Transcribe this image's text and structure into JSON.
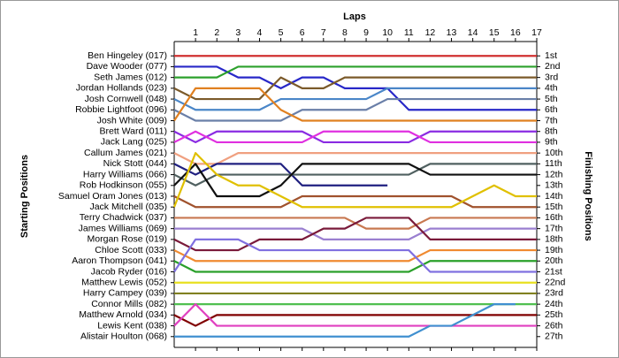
{
  "chart_data": {
    "type": "line",
    "title": "Laps",
    "ylabel": "Starting Positions",
    "y2label": "Finishing Positions",
    "x": [
      0,
      1,
      2,
      3,
      4,
      5,
      6,
      7,
      8,
      9,
      10,
      11,
      12,
      13,
      14,
      15,
      16,
      17
    ],
    "xlim": [
      0,
      17
    ],
    "xticks": [
      1,
      2,
      3,
      4,
      5,
      6,
      7,
      8,
      9,
      10,
      11,
      12,
      13,
      14,
      15,
      16,
      17
    ],
    "ylim": [
      28,
      0
    ],
    "yticks": [
      {
        "value": 1,
        "label": "1st"
      },
      {
        "value": 2,
        "label": "2nd"
      },
      {
        "value": 3,
        "label": "3rd"
      },
      {
        "value": 4,
        "label": "4th"
      },
      {
        "value": 5,
        "label": "5th"
      },
      {
        "value": 6,
        "label": "6th"
      },
      {
        "value": 7,
        "label": "7th"
      },
      {
        "value": 8,
        "label": "8th"
      },
      {
        "value": 9,
        "label": "9th"
      },
      {
        "value": 10,
        "label": "10th"
      },
      {
        "value": 11,
        "label": "11th"
      },
      {
        "value": 12,
        "label": "12th"
      },
      {
        "value": 13,
        "label": "13th"
      },
      {
        "value": 14,
        "label": "14th"
      },
      {
        "value": 15,
        "label": "15th"
      },
      {
        "value": 16,
        "label": "16th"
      },
      {
        "value": 17,
        "label": "17th"
      },
      {
        "value": 18,
        "label": "18th"
      },
      {
        "value": 19,
        "label": "19th"
      },
      {
        "value": 20,
        "label": "20th"
      },
      {
        "value": 21,
        "label": "21st"
      },
      {
        "value": 22,
        "label": "22nd"
      },
      {
        "value": 23,
        "label": "23rd"
      },
      {
        "value": 24,
        "label": "24th"
      },
      {
        "value": 25,
        "label": "25th"
      },
      {
        "value": 26,
        "label": "26th"
      },
      {
        "value": 27,
        "label": "27th"
      }
    ],
    "series": [
      {
        "name": "Ben Hingeley (017)",
        "color": "#d03030",
        "values": [
          1,
          1,
          1,
          1,
          1,
          1,
          1,
          1,
          1,
          1,
          1,
          1,
          1,
          1,
          1,
          1,
          1,
          1
        ]
      },
      {
        "name": "Dave Wooder (077)",
        "color": "#2828c8",
        "values": [
          2,
          2,
          2,
          3,
          3,
          4,
          3,
          3,
          4,
          4,
          4,
          6,
          6,
          6,
          6,
          6,
          6,
          6
        ]
      },
      {
        "name": "Seth James (012)",
        "color": "#2ca02c",
        "values": [
          3,
          3,
          3,
          2,
          2,
          2,
          2,
          2,
          2,
          2,
          2,
          2,
          2,
          2,
          2,
          2,
          2,
          2
        ]
      },
      {
        "name": "Jordan Hollands (023)",
        "color": "#7b5a2a",
        "values": [
          4,
          5,
          5,
          5,
          5,
          3,
          4,
          4,
          3,
          3,
          3,
          3,
          3,
          3,
          3,
          3,
          3,
          3
        ]
      },
      {
        "name": "Josh Cornwell (048)",
        "color": "#4a86c8",
        "values": [
          5,
          6,
          6,
          6,
          6,
          5,
          5,
          5,
          5,
          5,
          4,
          4,
          4,
          4,
          4,
          4,
          4,
          4
        ]
      },
      {
        "name": "Robbie Lightfoot (096)",
        "color": "#6a7fa8",
        "values": [
          6,
          7,
          7,
          7,
          7,
          7,
          6,
          6,
          6,
          6,
          5,
          5,
          5,
          5,
          5,
          5,
          5,
          5
        ]
      },
      {
        "name": "Josh White (009)",
        "color": "#e08020",
        "values": [
          7,
          4,
          4,
          4,
          4,
          6,
          7,
          7,
          7,
          7,
          7,
          7,
          7,
          7,
          7,
          7,
          7,
          7
        ]
      },
      {
        "name": "Brett Ward (011)",
        "color": "#8a2be2",
        "values": [
          8,
          9,
          8,
          8,
          8,
          8,
          8,
          9,
          9,
          9,
          9,
          9,
          8,
          8,
          8,
          8,
          8,
          8
        ]
      },
      {
        "name": "Jack Lang (025)",
        "color": "#e030e0",
        "values": [
          9,
          8,
          9,
          9,
          9,
          9,
          9,
          8,
          8,
          8,
          8,
          8,
          9,
          9,
          9,
          9,
          9,
          9
        ]
      },
      {
        "name": "Callum James (021)",
        "color": "#f0a080",
        "values": [
          10,
          11,
          11,
          10,
          10,
          10,
          10,
          10,
          10,
          10,
          10,
          10,
          10,
          10,
          10,
          10,
          10,
          10
        ]
      },
      {
        "name": "Nick Stott (044)",
        "color": "#202080",
        "values": [
          11,
          12,
          11,
          11,
          11,
          11,
          13,
          13,
          13,
          13,
          13,
          null,
          null,
          null,
          null,
          null,
          null,
          null
        ]
      },
      {
        "name": "Harry Williams (066)",
        "color": "#506060",
        "values": [
          12,
          13,
          12,
          12,
          12,
          12,
          12,
          12,
          12,
          12,
          12,
          12,
          11,
          11,
          11,
          11,
          11,
          11
        ]
      },
      {
        "name": "Rob Hodkinson (055)",
        "color": "#101010",
        "values": [
          13,
          11,
          14,
          14,
          14,
          13,
          11,
          11,
          11,
          11,
          11,
          11,
          12,
          12,
          12,
          12,
          12,
          12
        ]
      },
      {
        "name": "Samuel Oram Jones (013)",
        "color": "#a0522d",
        "values": [
          14,
          15,
          15,
          15,
          15,
          15,
          14,
          14,
          14,
          14,
          14,
          14,
          14,
          14,
          15,
          15,
          15,
          15
        ]
      },
      {
        "name": "Jack Mitchell (035)",
        "color": "#e0c000",
        "values": [
          15,
          10,
          12,
          13,
          13,
          14,
          15,
          15,
          15,
          15,
          15,
          15,
          15,
          15,
          14,
          13,
          14,
          14
        ]
      },
      {
        "name": "Terry Chadwick (037)",
        "color": "#c87850",
        "values": [
          16,
          16,
          16,
          16,
          16,
          16,
          16,
          16,
          16,
          17,
          17,
          17,
          16,
          16,
          16,
          16,
          16,
          16
        ]
      },
      {
        "name": "James Williams (069)",
        "color": "#9a7fd0",
        "values": [
          17,
          17,
          17,
          17,
          17,
          17,
          17,
          18,
          18,
          18,
          18,
          18,
          17,
          17,
          17,
          17,
          17,
          17
        ]
      },
      {
        "name": "Morgan Rose (019)",
        "color": "#7a1a3a",
        "values": [
          18,
          19,
          19,
          19,
          18,
          18,
          18,
          17,
          17,
          16,
          16,
          16,
          18,
          18,
          18,
          18,
          18,
          18
        ]
      },
      {
        "name": "Chloe Scott (033)",
        "color": "#f08a30",
        "values": [
          19,
          20,
          20,
          20,
          20,
          20,
          20,
          20,
          20,
          20,
          20,
          20,
          19,
          19,
          19,
          19,
          19,
          19
        ]
      },
      {
        "name": "Aaron Thompson (041)",
        "color": "#2aa02a",
        "values": [
          20,
          21,
          21,
          21,
          21,
          21,
          21,
          21,
          21,
          21,
          21,
          21,
          20,
          20,
          20,
          20,
          20,
          20
        ]
      },
      {
        "name": "Jacob Ryder (016)",
        "color": "#8070e0",
        "values": [
          21,
          18,
          18,
          18,
          19,
          19,
          19,
          19,
          19,
          19,
          19,
          19,
          21,
          21,
          21,
          21,
          21,
          21
        ]
      },
      {
        "name": "Matthew Lewis (052)",
        "color": "#e8e020",
        "values": [
          22,
          22,
          22,
          22,
          22,
          22,
          22,
          22,
          22,
          22,
          22,
          22,
          22,
          22,
          22,
          22,
          22,
          22
        ]
      },
      {
        "name": "Harry Campey (039)",
        "color": "#808020",
        "values": [
          23,
          23,
          23,
          23,
          23,
          23,
          23,
          23,
          23,
          23,
          23,
          23,
          23,
          23,
          23,
          23,
          23,
          23
        ]
      },
      {
        "name": "Connor Mills (082)",
        "color": "#50c050",
        "values": [
          24,
          24,
          24,
          24,
          24,
          24,
          24,
          24,
          24,
          24,
          24,
          24,
          24,
          24,
          24,
          24,
          24,
          24
        ]
      },
      {
        "name": "Matthew Arnold (034)",
        "color": "#800000",
        "values": [
          25,
          26,
          25,
          25,
          25,
          25,
          25,
          25,
          25,
          25,
          25,
          25,
          25,
          25,
          25,
          25,
          25,
          25
        ]
      },
      {
        "name": "Lewis Kent (038)",
        "color": "#e040c0",
        "values": [
          26,
          24,
          26,
          26,
          26,
          26,
          26,
          26,
          26,
          26,
          26,
          26,
          26,
          26,
          26,
          26,
          26,
          26
        ]
      },
      {
        "name": "Alistair Houlton (068)",
        "color": "#4090d0",
        "values": [
          27,
          27,
          27,
          27,
          27,
          27,
          27,
          27,
          27,
          27,
          27,
          27,
          26,
          26,
          25,
          24,
          24,
          null
        ]
      }
    ]
  }
}
